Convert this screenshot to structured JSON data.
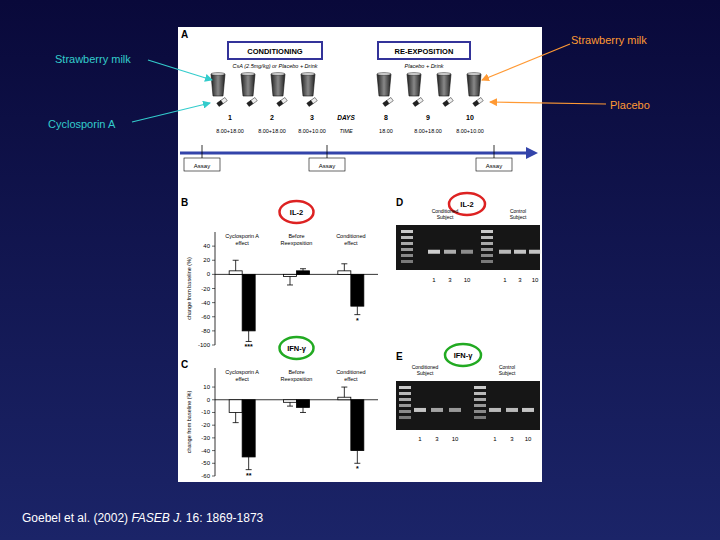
{
  "chart_data": [
    {
      "type": "bar",
      "panel": "B",
      "title": "IL-2",
      "ylabel": "change from baseline (%)",
      "categories": [
        "Cyclosporin A effect",
        "Before Reexposition",
        "Conditioned effect"
      ],
      "series": [
        {
          "color": "#ffffff",
          "values": [
            5,
            -3,
            5
          ],
          "errors": [
            15,
            12,
            10
          ]
        },
        {
          "color": "#000000",
          "values": [
            -80,
            5,
            -45
          ],
          "errors": [
            15,
            3,
            12
          ]
        }
      ],
      "significance": [
        "***",
        null,
        "*"
      ],
      "ylim": [
        -100,
        60
      ],
      "yticks": [
        -100,
        -80,
        -60,
        -40,
        -20,
        0,
        20,
        40
      ]
    },
    {
      "type": "bar",
      "panel": "C",
      "title": "IFN-γ",
      "ylabel": "change from baseline (%)",
      "categories": [
        "Cyclosporin A effect",
        "Before Reexposition",
        "Conditioned effect"
      ],
      "series": [
        {
          "color": "#ffffff",
          "values": [
            -10,
            -2,
            2
          ],
          "errors": [
            8,
            3,
            8
          ]
        },
        {
          "color": "#000000",
          "values": [
            -45,
            -6,
            -40
          ],
          "errors": [
            10,
            4,
            10
          ]
        }
      ],
      "significance": [
        "**",
        null,
        "*"
      ],
      "ylim": [
        -60,
        25
      ],
      "yticks": [
        -60,
        -50,
        -40,
        -30,
        -20,
        -10,
        0,
        10
      ]
    }
  ],
  "panel_a": {
    "panel": "A",
    "conditioning": {
      "title": "CONDITIONING",
      "subtitle": "CsA (2.5mg/kg) or Placebo + Drink"
    },
    "reexposition": {
      "title": "RE-EXPOSITION",
      "subtitle": "Placebo + Drink"
    },
    "days_label": "DAYS",
    "days": [
      1,
      2,
      3,
      8,
      9,
      10
    ],
    "time_label": "TIME",
    "times": [
      "8.00+18.00",
      "8.00+18.00",
      "8.00+10.00",
      "18.00",
      "8.00+18.00",
      "8.00+10.00"
    ],
    "assays": [
      "Assay",
      "Assay",
      "Assay"
    ]
  },
  "gels": [
    {
      "panel": "D",
      "title": "IL-2",
      "groups": [
        {
          "label": "Conditioned Subject",
          "lanes": [
            1,
            3,
            10
          ]
        },
        {
          "label": "Control Subject",
          "lanes": [
            1,
            3,
            10
          ]
        }
      ]
    },
    {
      "panel": "E",
      "title": "IFN-γ",
      "groups": [
        {
          "label": "Conditioned Subject",
          "lanes": [
            1,
            3,
            10
          ]
        },
        {
          "label": "Control Subject",
          "lanes": [
            1,
            3,
            10
          ]
        }
      ]
    }
  ],
  "callouts": [
    {
      "text": "Strawberry milk"
    },
    {
      "text": "Cyclosporin A"
    },
    {
      "text": "Strawberry milk"
    },
    {
      "text": "Placebo"
    }
  ],
  "citation": {
    "authors": "Goebel et al. (2002)",
    "journal": "FASEB J.",
    "ref": "16: 1869-1873"
  }
}
